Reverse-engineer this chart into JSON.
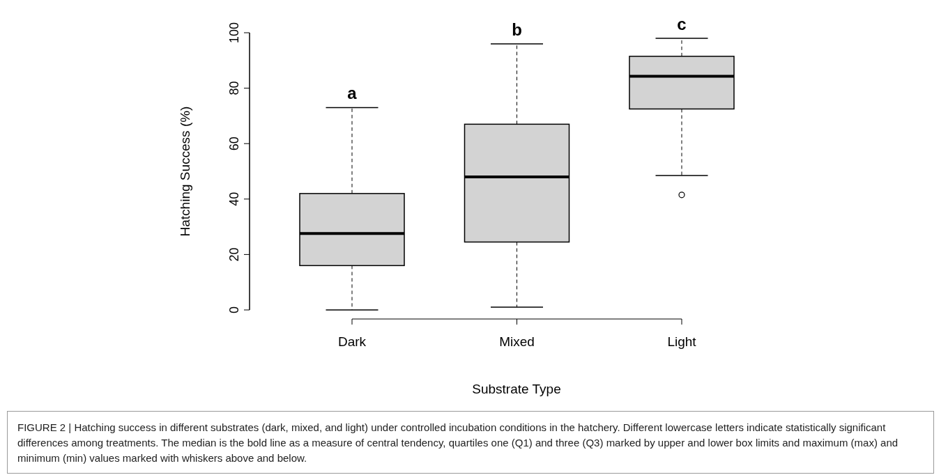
{
  "chart_data": {
    "type": "box",
    "xlabel": "Substrate Type",
    "ylabel": "Hatching Success (%)",
    "categories": [
      "Dark",
      "Mixed",
      "Light"
    ],
    "boxes": [
      {
        "low": 0,
        "q1": 16,
        "median": 27.6,
        "q3": 42,
        "high": 73
      },
      {
        "low": 1,
        "q1": 24.5,
        "median": 48,
        "q3": 67,
        "high": 96
      },
      {
        "low": 48.5,
        "q1": 72.5,
        "median": 84.3,
        "q3": 91.5,
        "high": 98,
        "outliers": [
          41.5
        ]
      }
    ],
    "color": "#d3d3d3",
    "ylim": [
      0,
      100
    ],
    "yticks": [
      0,
      20,
      40,
      60,
      80,
      100
    ],
    "grid": false,
    "annotations": [
      "a",
      "b",
      "c",
      "FIGURE 2 | Hatching success in different substrates (dark, mixed, and light) under controlled incubation conditions in the hatchery. Different lowercase letters indicate statistically significant differences among treatments. The median is the bold line as a measure of central tendency, quartiles one (Q1) and three (Q3) marked by upper and lower box limits and maximum (max) and minimum (min) values marked with whiskers above and below."
    ]
  }
}
